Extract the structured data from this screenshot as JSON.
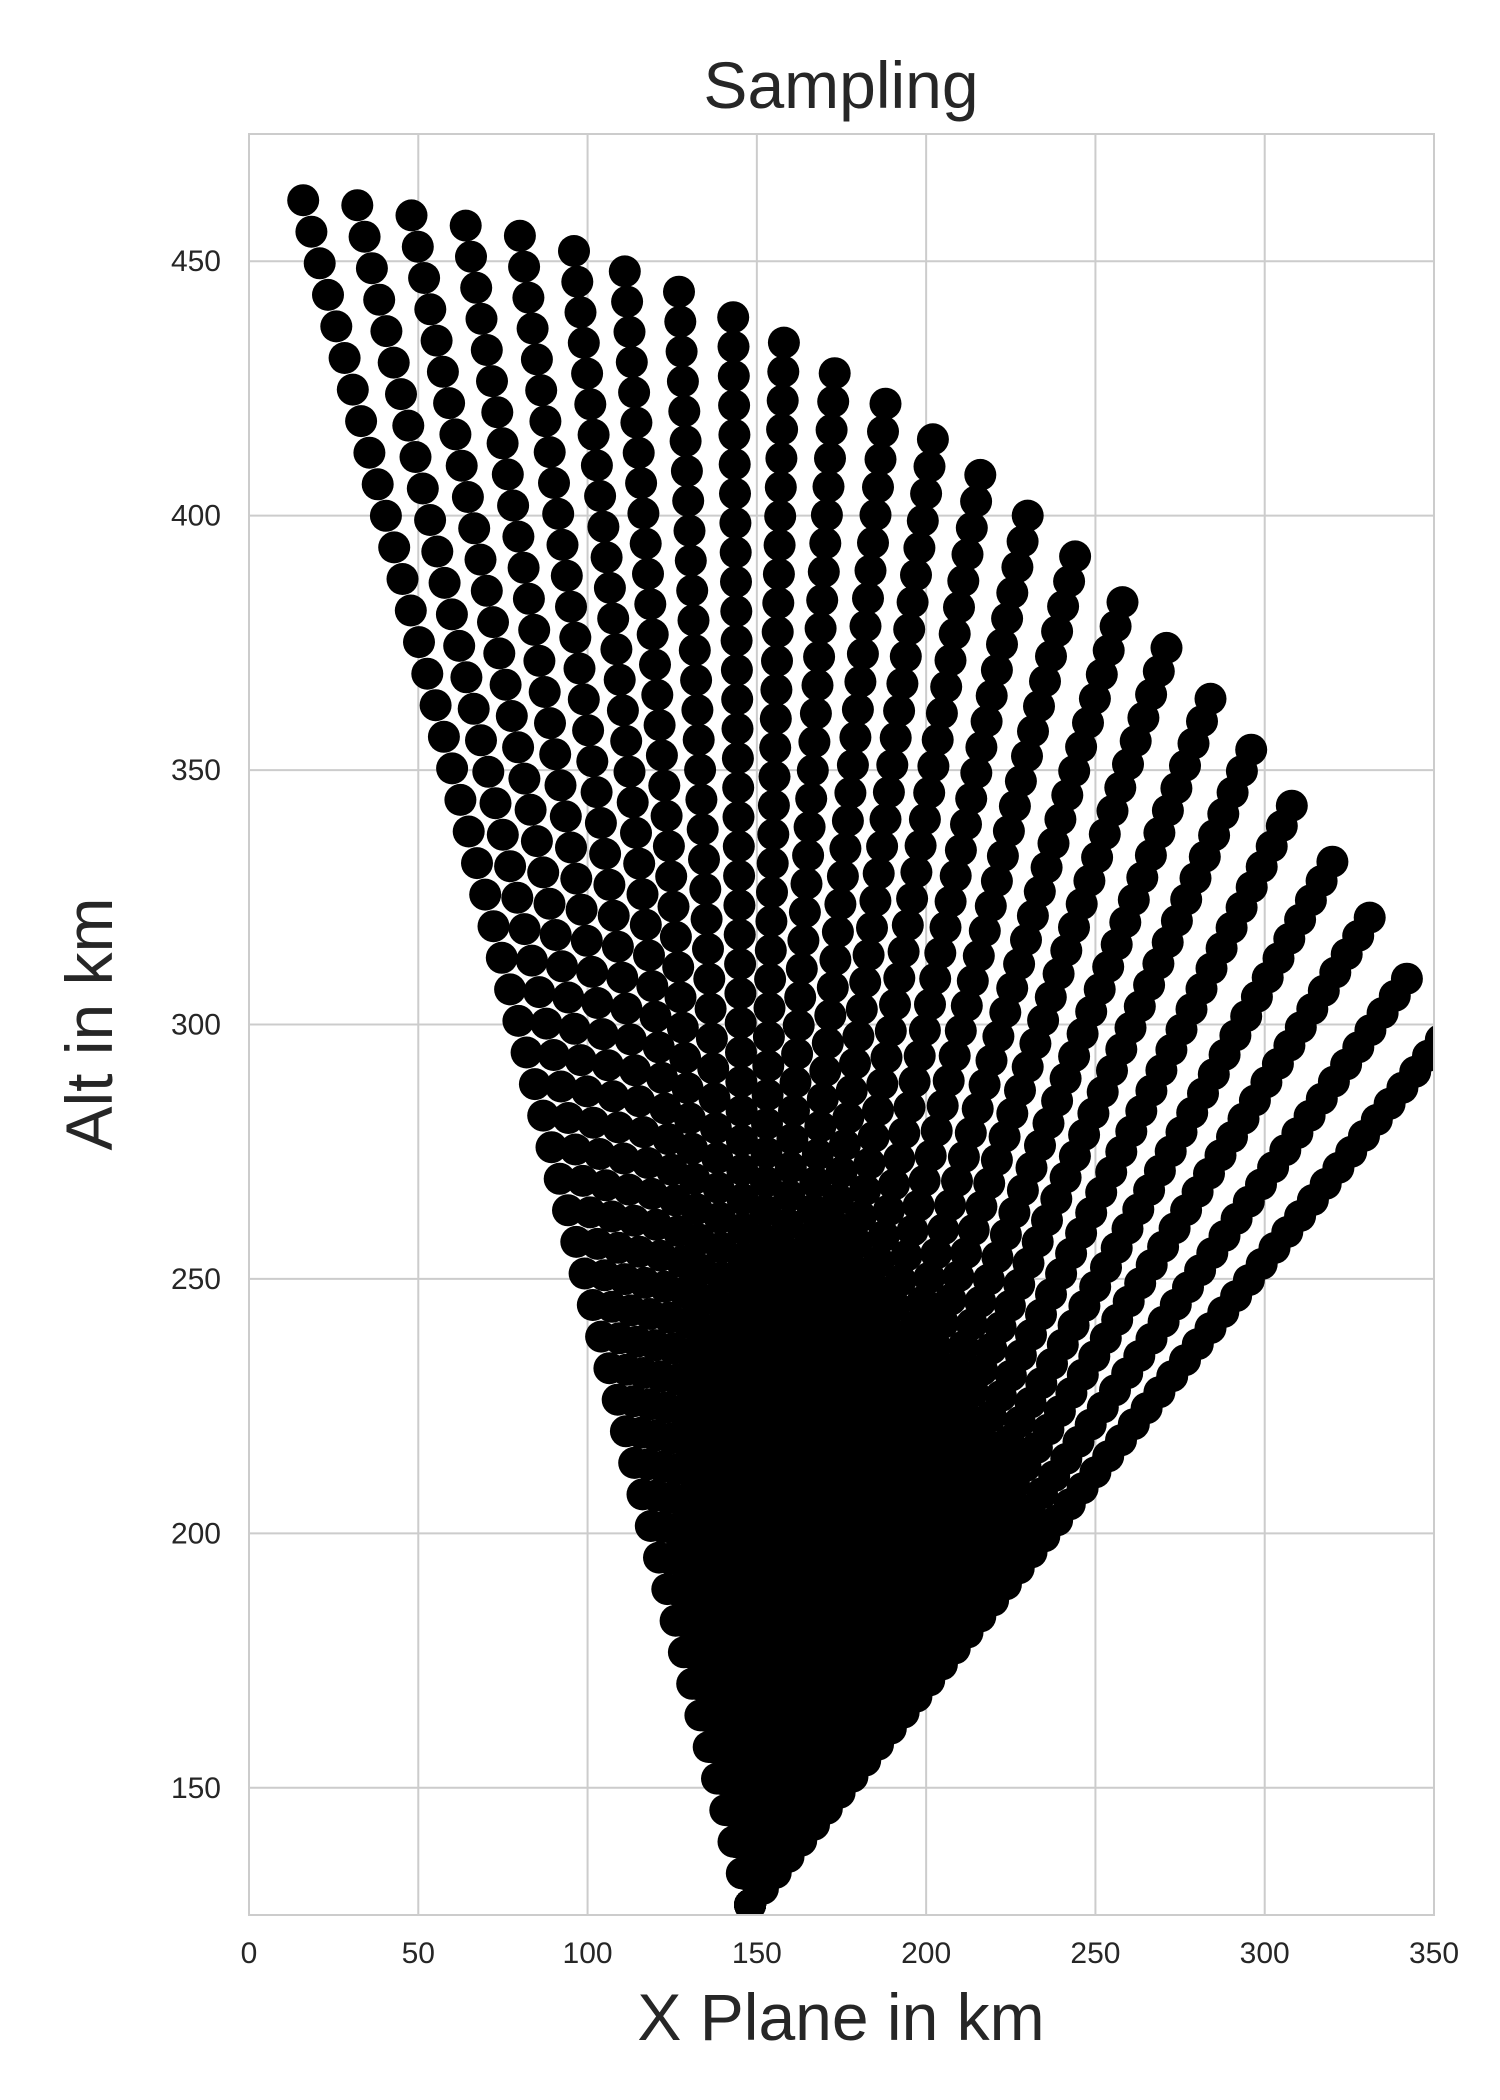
{
  "chart_data": {
    "type": "scatter",
    "title": "Sampling",
    "xlabel": "X Plane in km",
    "ylabel": "Alt in km",
    "xlim": [
      0,
      350
    ],
    "ylim": [
      125,
      475
    ],
    "xticks": [
      0,
      50,
      100,
      150,
      200,
      250,
      300,
      350
    ],
    "yticks": [
      150,
      200,
      250,
      300,
      350,
      400,
      450
    ],
    "grid": true,
    "marker_color": "#000000",
    "series": [
      {
        "description": "Fan of 25 sample rays from a common origin; points listed along each ray from outer end to apex",
        "rays": [
          {
            "start": [
              16,
              462
            ],
            "end": [
              148,
              127
            ]
          },
          {
            "start": [
              32,
              461
            ],
            "end": [
              148,
              127
            ]
          },
          {
            "start": [
              48,
              459
            ],
            "end": [
              148,
              127
            ]
          },
          {
            "start": [
              64,
              457
            ],
            "end": [
              148,
              127
            ]
          },
          {
            "start": [
              80,
              455
            ],
            "end": [
              148,
              127
            ]
          },
          {
            "start": [
              96,
              452
            ],
            "end": [
              148,
              127
            ]
          },
          {
            "start": [
              111,
              448
            ],
            "end": [
              148,
              127
            ]
          },
          {
            "start": [
              127,
              444
            ],
            "end": [
              148,
              127
            ]
          },
          {
            "start": [
              143,
              439
            ],
            "end": [
              148,
              127
            ]
          },
          {
            "start": [
              158,
              434
            ],
            "end": [
              148,
              127
            ]
          },
          {
            "start": [
              173,
              428
            ],
            "end": [
              148,
              127
            ]
          },
          {
            "start": [
              188,
              422
            ],
            "end": [
              148,
              127
            ]
          },
          {
            "start": [
              202,
              415
            ],
            "end": [
              148,
              127
            ]
          },
          {
            "start": [
              216,
              408
            ],
            "end": [
              148,
              127
            ]
          },
          {
            "start": [
              230,
              400
            ],
            "end": [
              148,
              127
            ]
          },
          {
            "start": [
              244,
              392
            ],
            "end": [
              148,
              127
            ]
          },
          {
            "start": [
              258,
              383
            ],
            "end": [
              148,
              127
            ]
          },
          {
            "start": [
              271,
              374
            ],
            "end": [
              148,
              127
            ]
          },
          {
            "start": [
              284,
              364
            ],
            "end": [
              148,
              127
            ]
          },
          {
            "start": [
              296,
              354
            ],
            "end": [
              148,
              127
            ]
          },
          {
            "start": [
              308,
              343
            ],
            "end": [
              148,
              127
            ]
          },
          {
            "start": [
              320,
              332
            ],
            "end": [
              148,
              127
            ]
          },
          {
            "start": [
              331,
              321
            ],
            "end": [
              148,
              127
            ]
          },
          {
            "start": [
              342,
              309
            ],
            "end": [
              148,
              127
            ]
          },
          {
            "start": [
              352,
              297
            ],
            "end": [
              148,
              127
            ]
          }
        ],
        "points_per_ray": 55
      }
    ]
  }
}
